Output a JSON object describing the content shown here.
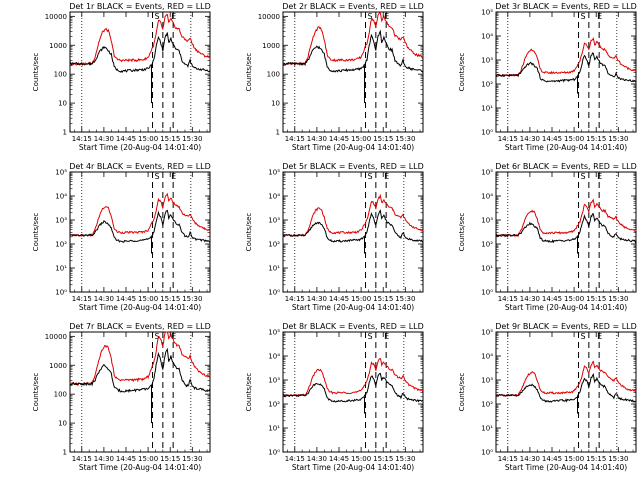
{
  "chart_data": [
    {
      "title": "Det 1r BLACK = Events, RED = LLD",
      "scale": "A",
      "ylabel": "Counts/sec",
      "xlabel": "Start Time (20-Aug-04 14:01:40)",
      "xticks": [
        "14:15",
        "14:30",
        "14:45",
        "15:00",
        "15:15",
        "15:30"
      ],
      "yticks": [
        "1",
        "10",
        "100",
        "1000",
        "10000"
      ],
      "markers": [
        "S",
        "E"
      ],
      "type": "line"
    },
    {
      "title": "Det 2r BLACK = Events, RED = LLD",
      "scale": "A",
      "ylabel": "Counts/sec",
      "xlabel": "Start Time (20-Aug-04 14:01:40)",
      "xticks": [
        "14:15",
        "14:30",
        "14:45",
        "15:00",
        "15:15",
        "15:30"
      ],
      "yticks": [
        "1",
        "10",
        "100",
        "1000",
        "10000"
      ],
      "markers": [
        "S",
        "E"
      ],
      "type": "line"
    },
    {
      "title": "Det 3r BLACK = Events, RED = LLD",
      "scale": "B",
      "ylabel": "Counts/sec",
      "xlabel": "Start Time (20-Aug-04 14:01:40)",
      "xticks": [
        "14:15",
        "14:30",
        "14:45",
        "15:00",
        "15:15",
        "15:30"
      ],
      "yticks": [
        "10⁰",
        "10¹",
        "10²",
        "10³",
        "10⁴",
        "10⁵"
      ],
      "markers": [
        "S",
        "E"
      ],
      "type": "line"
    },
    {
      "title": "Det 4r BLACK = Events, RED = LLD",
      "scale": "B",
      "ylabel": "Counts/sec",
      "xlabel": "Start Time (20-Aug-04 14:01:40)",
      "xticks": [
        "14:15",
        "14:30",
        "14:45",
        "15:00",
        "15:15",
        "15:30"
      ],
      "yticks": [
        "10⁰",
        "10¹",
        "10²",
        "10³",
        "10⁴",
        "10⁵"
      ],
      "markers": [
        "S",
        "E"
      ],
      "type": "line"
    },
    {
      "title": "Det 5r BLACK = Events, RED = LLD",
      "scale": "B",
      "ylabel": "Counts/sec",
      "xlabel": "Start Time (20-Aug-04 14:01:40)",
      "xticks": [
        "14:15",
        "14:30",
        "14:45",
        "15:00",
        "15:15",
        "15:30"
      ],
      "yticks": [
        "10⁰",
        "10¹",
        "10²",
        "10³",
        "10⁴",
        "10⁵"
      ],
      "markers": [
        "S",
        "E"
      ],
      "type": "line"
    },
    {
      "title": "Det 6r BLACK = Events, RED = LLD",
      "scale": "B",
      "ylabel": "Counts/sec",
      "xlabel": "Start Time (20-Aug-04 14:01:40)",
      "xticks": [
        "14:15",
        "14:30",
        "14:45",
        "15:00",
        "15:15",
        "15:30"
      ],
      "yticks": [
        "10⁰",
        "10¹",
        "10²",
        "10³",
        "10⁴",
        "10⁵"
      ],
      "markers": [
        "S",
        "E"
      ],
      "type": "line"
    },
    {
      "title": "Det 7r BLACK = Events, RED = LLD",
      "scale": "A",
      "ylabel": "Counts/sec",
      "xlabel": "Start Time (20-Aug-04 14:01:40)",
      "xticks": [
        "14:15",
        "14:30",
        "14:45",
        "15:00",
        "15:15",
        "15:30"
      ],
      "yticks": [
        "1",
        "10",
        "100",
        "1000",
        "10000"
      ],
      "markers": [
        "S",
        "E"
      ],
      "type": "line"
    },
    {
      "title": "Det 8r BLACK = Events, RED = LLD",
      "scale": "B",
      "ylabel": "Counts/sec",
      "xlabel": "Start Time (20-Aug-04 14:01:40)",
      "xticks": [
        "14:15",
        "14:30",
        "14:45",
        "15:00",
        "15:15",
        "15:30"
      ],
      "yticks": [
        "10⁰",
        "10¹",
        "10²",
        "10³",
        "10⁴",
        "10⁵"
      ],
      "markers": [
        "S",
        "E"
      ],
      "type": "line"
    },
    {
      "title": "Det 9r BLACK = Events, RED = LLD",
      "scale": "B",
      "ylabel": "Counts/sec",
      "xlabel": "Start Time (20-Aug-04 14:01:40)",
      "xticks": [
        "14:15",
        "14:30",
        "14:45",
        "15:00",
        "15:15",
        "15:30"
      ],
      "yticks": [
        "10⁰",
        "10¹",
        "10²",
        "10³",
        "10⁴",
        "10⁵"
      ],
      "markers": [
        "S",
        "E"
      ],
      "type": "line"
    }
  ],
  "series_colors": {
    "events": "#000000",
    "lld": "#e00000"
  },
  "x_range_minutes": [
    5,
    100
  ],
  "markers_minutes": {
    "start": 61,
    "end": 75
  },
  "dotted_minutes": [
    13,
    87
  ],
  "dashed_minutes": [
    61,
    68,
    75
  ],
  "lld_profile": [
    [
      5,
      230
    ],
    [
      14,
      228
    ],
    [
      20,
      235
    ],
    [
      22,
      400
    ],
    [
      25,
      1500
    ],
    [
      27,
      2800
    ],
    [
      29,
      3600
    ],
    [
      31,
      3200
    ],
    [
      33,
      1400
    ],
    [
      35,
      450
    ],
    [
      37,
      320
    ],
    [
      40,
      300
    ],
    [
      45,
      305
    ],
    [
      50,
      305
    ],
    [
      55,
      320
    ],
    [
      58,
      380
    ],
    [
      60,
      640
    ],
    [
      62,
      1100
    ],
    [
      63.5,
      2500
    ],
    [
      65,
      7000
    ],
    [
      66.5,
      6200
    ],
    [
      68,
      3500
    ],
    [
      69.5,
      9200
    ],
    [
      71,
      12000
    ],
    [
      72,
      6000
    ],
    [
      73.5,
      8000
    ],
    [
      75,
      5600
    ],
    [
      77,
      3900
    ],
    [
      79,
      3600
    ],
    [
      81,
      2000
    ],
    [
      83,
      1600
    ],
    [
      85,
      1400
    ],
    [
      86.5,
      1800
    ],
    [
      88,
      1100
    ],
    [
      90,
      750
    ],
    [
      93,
      550
    ],
    [
      96,
      440
    ],
    [
      100,
      380
    ]
  ],
  "events_profile": [
    [
      5,
      230
    ],
    [
      14,
      228
    ],
    [
      20,
      230
    ],
    [
      22,
      300
    ],
    [
      25,
      600
    ],
    [
      28,
      860
    ],
    [
      30,
      760
    ],
    [
      33,
      480
    ],
    [
      35,
      180
    ],
    [
      37,
      140
    ],
    [
      40,
      128
    ],
    [
      45,
      132
    ],
    [
      50,
      140
    ],
    [
      55,
      145
    ],
    [
      58,
      155
    ],
    [
      60,
      200
    ],
    [
      62,
      320
    ],
    [
      63.5,
      900
    ],
    [
      65,
      1900
    ],
    [
      66.5,
      1300
    ],
    [
      68,
      650
    ],
    [
      69.5,
      1900
    ],
    [
      71,
      2600
    ],
    [
      72,
      1200
    ],
    [
      73.5,
      1700
    ],
    [
      75,
      1050
    ],
    [
      77,
      720
    ],
    [
      79,
      650
    ],
    [
      81,
      300
    ],
    [
      83,
      220
    ],
    [
      85,
      190
    ],
    [
      86.5,
      300
    ],
    [
      88,
      185
    ],
    [
      90,
      160
    ],
    [
      93,
      150
    ],
    [
      96,
      140
    ],
    [
      100,
      130
    ]
  ]
}
